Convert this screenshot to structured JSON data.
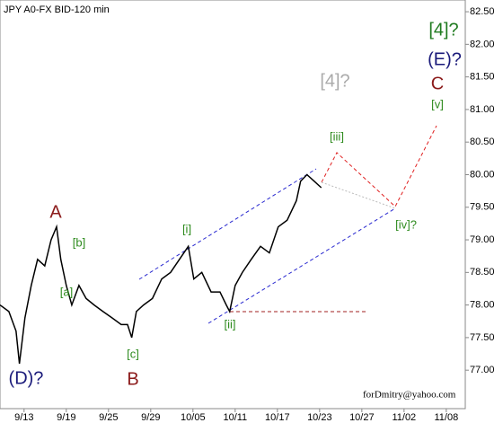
{
  "chart_data": {
    "type": "line",
    "title": "JPY A0-FX BID-120 min",
    "footer": "forDmitry@yahoo.com",
    "x": [
      -0.57,
      -0.36,
      -0.19,
      -0.11,
      0.02,
      0.17,
      0.32,
      0.49,
      0.64,
      0.77,
      0.87,
      1.0,
      1.13,
      1.3,
      1.47,
      1.66,
      1.87,
      2.09,
      2.3,
      2.45,
      2.55,
      2.66,
      2.83,
      3.04,
      3.26,
      3.47,
      3.68,
      3.89,
      4.02,
      4.21,
      4.43,
      4.64,
      4.79,
      4.87,
      5.0,
      5.17,
      5.38,
      5.6,
      5.81,
      6.02,
      6.23,
      6.45,
      6.55,
      6.7,
      6.87,
      7.04
    ],
    "series": [
      {
        "color": "#000000",
        "values": [
          78.0,
          77.9,
          77.6,
          77.1,
          77.8,
          78.3,
          78.7,
          78.6,
          79.0,
          79.2,
          78.7,
          78.3,
          78.0,
          78.3,
          78.1,
          78.0,
          77.9,
          77.8,
          77.7,
          77.7,
          77.5,
          77.9,
          78.0,
          78.1,
          78.4,
          78.5,
          78.7,
          78.9,
          78.4,
          78.5,
          78.2,
          78.2,
          78.0,
          77.9,
          78.3,
          78.5,
          78.7,
          78.9,
          78.8,
          79.2,
          79.3,
          79.6,
          79.9,
          80.0,
          79.9,
          79.8
        ]
      }
    ],
    "xlim": [
      -0.57,
      10.45
    ],
    "xticks": [
      {
        "value": 0,
        "label": "9/13"
      },
      {
        "value": 1,
        "label": "9/19"
      },
      {
        "value": 2,
        "label": "9/25"
      },
      {
        "value": 3,
        "label": "9/29"
      },
      {
        "value": 4,
        "label": "10/05"
      },
      {
        "value": 5,
        "label": "10/11"
      },
      {
        "value": 6,
        "label": "10/17"
      },
      {
        "value": 7,
        "label": "10/23"
      },
      {
        "value": 8,
        "label": "10/27"
      },
      {
        "value": 9,
        "label": "11/02"
      },
      {
        "value": 10,
        "label": "11/08"
      }
    ],
    "ylim": [
      76.41,
      82.68
    ],
    "yticks": [
      {
        "value": 77,
        "label": "77.00"
      },
      {
        "value": 77.5,
        "label": "77.50"
      },
      {
        "value": 78,
        "label": "78.00"
      },
      {
        "value": 78.5,
        "label": "78.50"
      },
      {
        "value": 79,
        "label": "79.00"
      },
      {
        "value": 79.5,
        "label": "79.50"
      },
      {
        "value": 80,
        "label": "80.00"
      },
      {
        "value": 80.5,
        "label": "80.50"
      },
      {
        "value": 81,
        "label": "81.00"
      },
      {
        "value": 81.5,
        "label": "81.50"
      },
      {
        "value": 82,
        "label": "82.00"
      },
      {
        "value": 82.5,
        "label": "82.50"
      }
    ],
    "annotations": [
      {
        "text": "A",
        "color": "#8b1a1a"
      },
      {
        "text": "[b]",
        "color": "#2e8b1e"
      },
      {
        "text": "[a]",
        "color": "#2e8b1e"
      },
      {
        "text": "[c]",
        "color": "#2e8b1e"
      },
      {
        "text": "B",
        "color": "#8b1a1a"
      },
      {
        "text": "(D)?",
        "color": "#1a1a7a"
      },
      {
        "text": "[i]",
        "color": "#2e8b1e"
      },
      {
        "text": "[ii]",
        "color": "#2e8b1e"
      },
      {
        "text": "[iii]",
        "color": "#2e8b1e"
      },
      {
        "text": "[iv]?",
        "color": "#2e8b1e"
      },
      {
        "text": "[v]",
        "color": "#2e8b1e"
      },
      {
        "text": "[4]?",
        "color": "#aaaaaa"
      },
      {
        "text": "C",
        "color": "#8b1a1a"
      },
      {
        "text": "(E)?",
        "color": "#1a1a7a"
      },
      {
        "text": "[4]?",
        "color": "#1e7a1e"
      }
    ]
  }
}
